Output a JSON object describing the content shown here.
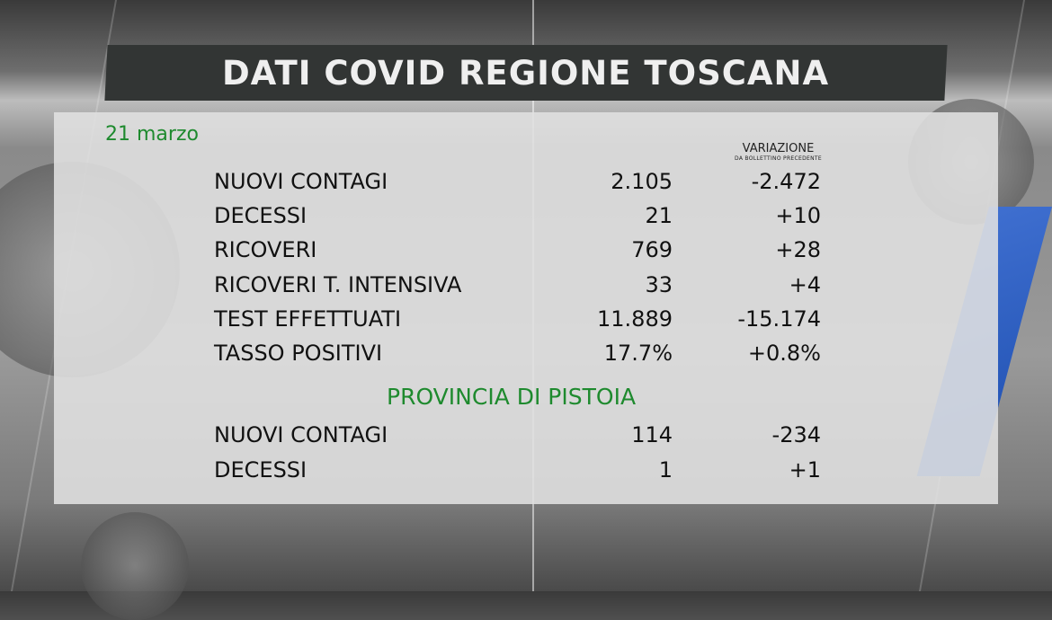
{
  "title": "DATI COVID REGIONE TOSCANA",
  "date": "21 marzo",
  "variation_header": {
    "title": "VARIAZIONE",
    "subtitle": "DA BOLLETTINO PRECEDENTE"
  },
  "region_rows": [
    {
      "label": "NUOVI CONTAGI",
      "value": "2.105",
      "delta": "-2.472"
    },
    {
      "label": "DECESSI",
      "value": "21",
      "delta": "+10"
    },
    {
      "label": "RICOVERI",
      "value": "769",
      "delta": "+28"
    },
    {
      "label": "RICOVERI T. INTENSIVA",
      "value": "33",
      "delta": "+4"
    },
    {
      "label": "TEST EFFETTUATI",
      "value": "11.889",
      "delta": "-15.174"
    },
    {
      "label": "TASSO POSITIVI",
      "value": "17.7%",
      "delta": "+0.8%"
    }
  ],
  "province_title": "PROVINCIA DI PISTOIA",
  "province_rows": [
    {
      "label": "NUOVI CONTAGI",
      "value": "114",
      "delta": "-234"
    },
    {
      "label": "DECESSI",
      "value": "1",
      "delta": "+1"
    }
  ],
  "colors": {
    "accent_green": "#1e8a2e",
    "title_bar": "#323534"
  }
}
